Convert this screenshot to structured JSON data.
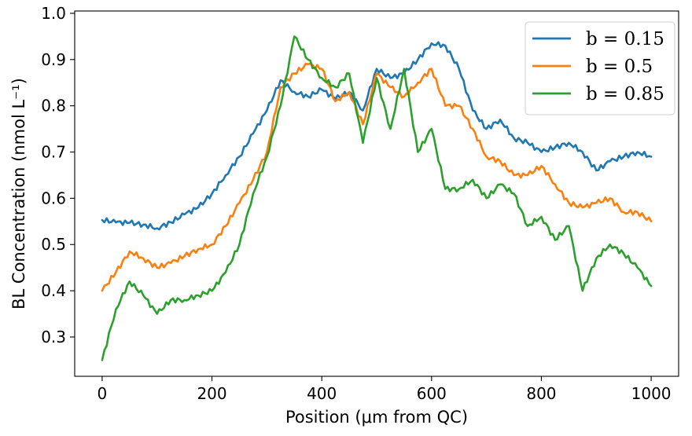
{
  "chart_data": {
    "type": "line",
    "title": "",
    "xlabel": "Position (μm from QC)",
    "ylabel": "BL Concentration (nmol L⁻¹)",
    "xlim": [
      -50,
      1050
    ],
    "ylim": [
      0.215,
      1.005
    ],
    "xticks": [
      0,
      200,
      400,
      600,
      800,
      1000
    ],
    "yticks": [
      0.3,
      0.4,
      0.5,
      0.6,
      0.7,
      0.8,
      0.9,
      1.0
    ],
    "xtick_labels": [
      "0",
      "200",
      "400",
      "600",
      "800",
      "1000"
    ],
    "ytick_labels": [
      "0.3",
      "0.4",
      "0.5",
      "0.6",
      "0.7",
      "0.8",
      "0.9",
      "1.0"
    ],
    "grid": false,
    "legend_position": "top-right",
    "x": [
      0,
      25,
      50,
      75,
      100,
      125,
      150,
      175,
      200,
      225,
      250,
      275,
      300,
      325,
      350,
      375,
      400,
      425,
      450,
      475,
      500,
      525,
      550,
      575,
      600,
      625,
      650,
      675,
      700,
      725,
      750,
      775,
      800,
      825,
      850,
      875,
      900,
      925,
      950,
      975,
      1000
    ],
    "series": [
      {
        "name": "b = 0.15",
        "color": "#1f77b4",
        "values": [
          0.553,
          0.548,
          0.547,
          0.543,
          0.535,
          0.548,
          0.565,
          0.58,
          0.61,
          0.65,
          0.69,
          0.74,
          0.79,
          0.855,
          0.83,
          0.82,
          0.835,
          0.815,
          0.83,
          0.79,
          0.88,
          0.86,
          0.87,
          0.9,
          0.935,
          0.93,
          0.88,
          0.79,
          0.75,
          0.77,
          0.73,
          0.72,
          0.7,
          0.71,
          0.72,
          0.7,
          0.66,
          0.68,
          0.69,
          0.7,
          0.69
        ]
      },
      {
        "name": "b = 0.5",
        "color": "#ff7f0e",
        "values": [
          0.4,
          0.44,
          0.485,
          0.47,
          0.45,
          0.46,
          0.475,
          0.49,
          0.5,
          0.54,
          0.59,
          0.64,
          0.7,
          0.84,
          0.87,
          0.89,
          0.88,
          0.81,
          0.83,
          0.76,
          0.87,
          0.84,
          0.82,
          0.85,
          0.88,
          0.8,
          0.8,
          0.75,
          0.69,
          0.68,
          0.65,
          0.65,
          0.67,
          0.63,
          0.59,
          0.58,
          0.59,
          0.6,
          0.57,
          0.57,
          0.55
        ]
      },
      {
        "name": "b = 0.85",
        "color": "#2ca02c",
        "values": [
          0.25,
          0.36,
          0.42,
          0.39,
          0.35,
          0.38,
          0.38,
          0.39,
          0.4,
          0.44,
          0.5,
          0.61,
          0.69,
          0.8,
          0.95,
          0.9,
          0.86,
          0.84,
          0.87,
          0.72,
          0.86,
          0.75,
          0.88,
          0.7,
          0.75,
          0.62,
          0.62,
          0.64,
          0.6,
          0.63,
          0.61,
          0.54,
          0.56,
          0.51,
          0.54,
          0.4,
          0.47,
          0.5,
          0.48,
          0.45,
          0.41
        ]
      }
    ]
  }
}
